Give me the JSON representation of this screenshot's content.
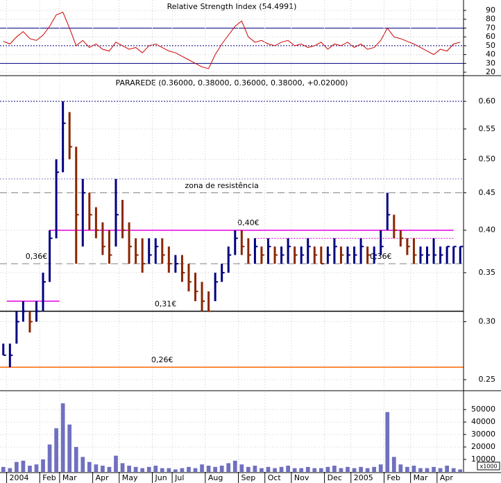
{
  "chart_data": [
    {
      "type": "line",
      "title": "Relative Strength Index (54.4991)",
      "color": "#cc0000",
      "values": [
        55,
        52,
        60,
        66,
        58,
        56,
        62,
        72,
        85,
        88,
        70,
        50,
        56,
        48,
        52,
        46,
        44,
        54,
        50,
        46,
        48,
        42,
        50,
        52,
        48,
        44,
        42,
        38,
        34,
        30,
        26,
        24,
        40,
        52,
        62,
        72,
        78,
        60,
        54,
        56,
        52,
        50,
        54,
        56,
        50,
        52,
        48,
        50,
        54,
        46,
        52,
        50,
        54,
        48,
        52,
        46,
        48,
        56,
        70,
        60,
        58,
        55,
        52,
        48,
        44,
        40,
        46,
        44,
        52,
        54
      ],
      "ylim": [
        16.9,
        101.8
      ],
      "yticks": [
        20,
        30,
        40,
        50,
        60,
        70,
        80,
        90
      ],
      "lines": [
        {
          "value": 70,
          "color": "#000080",
          "style": "solid"
        },
        {
          "value": 50,
          "color": "#000080",
          "style": "dotted"
        },
        {
          "value": 30,
          "color": "#000080",
          "style": "solid"
        }
      ]
    },
    {
      "type": "hlc",
      "title": "PARAREDE (0.36000, 0.38000, 0.36000, 0.38000, +0.02000)",
      "log": true,
      "up_color": "#000080",
      "down_color": "#8b2500",
      "high": [
        0.28,
        0.28,
        0.31,
        0.32,
        0.31,
        0.32,
        0.35,
        0.4,
        0.5,
        0.6,
        0.58,
        0.52,
        0.47,
        0.45,
        0.43,
        0.41,
        0.4,
        0.47,
        0.44,
        0.41,
        0.39,
        0.39,
        0.39,
        0.39,
        0.39,
        0.38,
        0.37,
        0.37,
        0.36,
        0.35,
        0.34,
        0.33,
        0.35,
        0.36,
        0.38,
        0.4,
        0.4,
        0.39,
        0.39,
        0.38,
        0.39,
        0.38,
        0.38,
        0.39,
        0.38,
        0.38,
        0.39,
        0.38,
        0.38,
        0.38,
        0.39,
        0.38,
        0.38,
        0.38,
        0.39,
        0.38,
        0.38,
        0.4,
        0.45,
        0.42,
        0.4,
        0.39,
        0.39,
        0.38,
        0.38,
        0.39,
        0.38,
        0.38,
        0.38,
        0.38
      ],
      "low": [
        0.27,
        0.26,
        0.28,
        0.3,
        0.29,
        0.3,
        0.31,
        0.34,
        0.39,
        0.48,
        0.5,
        0.36,
        0.38,
        0.4,
        0.39,
        0.37,
        0.36,
        0.38,
        0.39,
        0.36,
        0.36,
        0.35,
        0.36,
        0.36,
        0.36,
        0.35,
        0.35,
        0.34,
        0.33,
        0.32,
        0.31,
        0.31,
        0.32,
        0.34,
        0.35,
        0.37,
        0.37,
        0.36,
        0.36,
        0.36,
        0.36,
        0.36,
        0.36,
        0.36,
        0.36,
        0.36,
        0.36,
        0.36,
        0.36,
        0.36,
        0.36,
        0.36,
        0.36,
        0.36,
        0.36,
        0.36,
        0.36,
        0.37,
        0.4,
        0.39,
        0.38,
        0.37,
        0.36,
        0.36,
        0.36,
        0.36,
        0.36,
        0.36,
        0.36,
        0.36
      ],
      "close": [
        0.27,
        0.27,
        0.3,
        0.31,
        0.3,
        0.31,
        0.34,
        0.39,
        0.48,
        0.56,
        0.52,
        0.42,
        0.45,
        0.42,
        0.4,
        0.38,
        0.37,
        0.42,
        0.4,
        0.38,
        0.37,
        0.36,
        0.37,
        0.38,
        0.37,
        0.36,
        0.36,
        0.35,
        0.34,
        0.33,
        0.32,
        0.31,
        0.34,
        0.35,
        0.37,
        0.39,
        0.38,
        0.37,
        0.38,
        0.37,
        0.38,
        0.37,
        0.37,
        0.38,
        0.37,
        0.37,
        0.38,
        0.37,
        0.36,
        0.37,
        0.38,
        0.37,
        0.37,
        0.37,
        0.38,
        0.37,
        0.37,
        0.38,
        0.42,
        0.4,
        0.39,
        0.38,
        0.37,
        0.37,
        0.37,
        0.37,
        0.37,
        0.38,
        0.38,
        0.38
      ],
      "ylim": [
        0.242,
        0.649
      ],
      "yticks": [
        {
          "value": 0.25,
          "label": "0.25"
        },
        {
          "value": 0.3,
          "label": "0.30"
        },
        {
          "value": 0.35,
          "label": "0.35"
        },
        {
          "value": 0.4,
          "label": "0.40"
        },
        {
          "value": 0.45,
          "label": "0.45"
        },
        {
          "value": 0.5,
          "label": "0.50"
        },
        {
          "value": 0.55,
          "label": "0.55"
        },
        {
          "value": 0.6,
          "label": "0.60"
        }
      ],
      "lines": [
        {
          "value": 0.6,
          "color": "#000080",
          "style": "dotted",
          "start": 0,
          "end": 70
        },
        {
          "value": 0.47,
          "color": "#8080c0",
          "style": "dotted",
          "start": 0,
          "end": 70
        },
        {
          "value": 0.45,
          "color": "#808080",
          "style": "dashed",
          "start": 0,
          "end": 70,
          "label": "zona de resistência",
          "label_at": 33
        },
        {
          "value": 0.4,
          "color": "#e000e0",
          "style": "solid",
          "start": 7.5,
          "end": 68.5,
          "label": "0,40€",
          "label_at": 37
        },
        {
          "value": 0.39,
          "color": "#e000e0",
          "style": "dotted",
          "start": 38.5,
          "end": 68.5
        },
        {
          "value": 0.36,
          "color": "#808080",
          "style": "dashed",
          "start": 0,
          "end": 70,
          "label": "0,36€",
          "label_at": 5
        },
        {
          "value": 0.36,
          "color": "#808080",
          "style": "none",
          "start": 0,
          "end": 0,
          "label": "0,36€",
          "label_at": 57
        },
        {
          "value": 0.32,
          "color": "#e000e0",
          "style": "solid",
          "start": 1,
          "end": 9
        },
        {
          "value": 0.31,
          "color": "#000000",
          "style": "solid",
          "start": 0,
          "end": 70,
          "label": "0,31€",
          "label_at": 24.5
        },
        {
          "value": 0.26,
          "color": "#ff6600",
          "style": "solid",
          "start": 0,
          "end": 70,
          "label": "0,26€",
          "label_at": 24
        }
      ],
      "label_colors": [
        "#808080",
        "#808080",
        "#808080",
        "#e000e0",
        "#808080",
        "#808080",
        "#808080",
        "#808080",
        "#000080",
        "#cc0000"
      ]
    },
    {
      "type": "bar",
      "color": "#7070c0",
      "unit_label": "x1000",
      "values": [
        4000,
        3000,
        8000,
        9000,
        5000,
        6000,
        10000,
        22000,
        35000,
        55000,
        38000,
        20000,
        12000,
        8000,
        6000,
        5000,
        4000,
        13000,
        7000,
        5000,
        4000,
        3000,
        4000,
        5000,
        3000,
        3000,
        2000,
        3000,
        4000,
        3000,
        6000,
        5000,
        4000,
        5000,
        7000,
        9000,
        6000,
        4000,
        5000,
        3000,
        4000,
        3000,
        4000,
        5000,
        3000,
        3000,
        4000,
        3000,
        3000,
        4000,
        5000,
        3000,
        4000,
        3000,
        4000,
        3000,
        4000,
        6000,
        48000,
        12000,
        6000,
        4000,
        5000,
        3000,
        3000,
        4000,
        3000,
        5000,
        3000,
        2000
      ],
      "ylim": [
        0,
        64000
      ],
      "yticks": [
        10000,
        20000,
        30000,
        40000,
        50000
      ]
    }
  ],
  "categories": [
    null,
    "2004",
    null,
    null,
    null,
    null,
    "Feb",
    null,
    null,
    "Mar",
    null,
    null,
    null,
    null,
    "Apr",
    null,
    null,
    null,
    "May",
    null,
    null,
    null,
    null,
    "Jun",
    null,
    null,
    "Jul",
    null,
    null,
    null,
    null,
    "Aug",
    null,
    null,
    null,
    null,
    "Sep",
    null,
    null,
    null,
    "Oct",
    null,
    null,
    null,
    "Nov",
    null,
    null,
    null,
    null,
    "Dec",
    null,
    null,
    null,
    "2005",
    null,
    null,
    null,
    null,
    "Feb",
    null,
    null,
    null,
    "Mar",
    null,
    null,
    null,
    "Apr",
    null,
    null,
    null
  ]
}
